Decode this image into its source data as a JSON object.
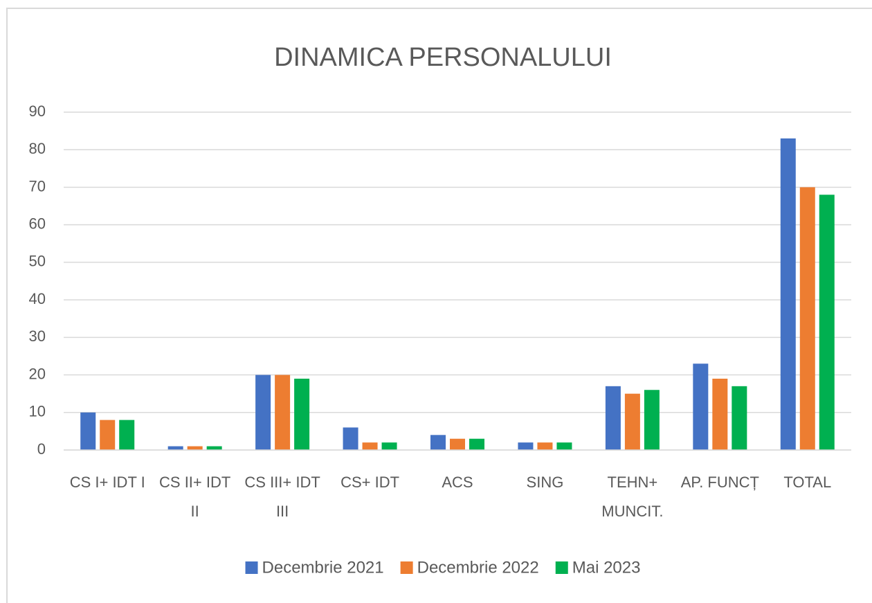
{
  "chart_data": {
    "type": "bar",
    "title": "DINAMICA PERSONALULUI",
    "categories": [
      "CS I+ IDT I",
      "CS II+ IDT II",
      "CS III+ IDT III",
      "CS+ IDT",
      "ACS",
      "SING",
      "TEHN+ MUNCIT.",
      "AP. FUNCȚ",
      "TOTAL"
    ],
    "series": [
      {
        "name": "Decembrie 2021",
        "color": "#4472c4",
        "values": [
          10,
          1,
          20,
          6,
          4,
          2,
          17,
          23,
          83
        ]
      },
      {
        "name": "Decembrie 2022",
        "color": "#ed7d31",
        "values": [
          8,
          1,
          20,
          2,
          3,
          2,
          15,
          19,
          70
        ]
      },
      {
        "name": "Mai 2023",
        "color": "#00b050",
        "values": [
          8,
          1,
          19,
          2,
          3,
          2,
          16,
          17,
          68
        ]
      }
    ],
    "ylim": [
      0,
      90
    ],
    "yticks": [
      0,
      10,
      20,
      30,
      40,
      50,
      60,
      70,
      80,
      90
    ],
    "grid": true,
    "legend": "bottom"
  }
}
